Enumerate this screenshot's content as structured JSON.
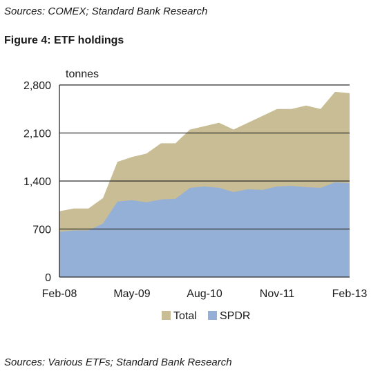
{
  "header": {
    "source_top": "Sources: COMEX; Standard Bank Research",
    "figure_title": "Figure 4: ETF holdings"
  },
  "footer": {
    "source_bottom": "Sources: Various ETFs; Standard Bank Research"
  },
  "colors": {
    "total": "#c8bd94",
    "spdr": "#94b0d6",
    "axis": "#2a2a2a",
    "grid": "#2a2a2a"
  },
  "chart_data": {
    "type": "area",
    "title": "",
    "xlabel": "",
    "ylabel": "tonnes",
    "ylim": [
      0,
      2800
    ],
    "yticks": [
      0,
      700,
      1400,
      2100,
      2800
    ],
    "ytick_labels": [
      "0",
      "700",
      "1,400",
      "2,100",
      "2,800"
    ],
    "xticks": [
      "2008-02",
      "2009-05",
      "2010-08",
      "2011-11",
      "2013-02"
    ],
    "xtick_labels": [
      "Feb-08",
      "May-09",
      "Aug-10",
      "Nov-11",
      "Feb-13"
    ],
    "grid": "horizontal",
    "legend_position": "bottom",
    "x": [
      "2008-02",
      "2008-05",
      "2008-08",
      "2008-11",
      "2009-02",
      "2009-05",
      "2009-08",
      "2009-11",
      "2010-02",
      "2010-05",
      "2010-08",
      "2010-11",
      "2011-02",
      "2011-05",
      "2011-08",
      "2011-11",
      "2012-02",
      "2012-05",
      "2012-08",
      "2012-11",
      "2013-02"
    ],
    "series": [
      {
        "name": "Total",
        "values": [
          960,
          1000,
          1000,
          1150,
          1680,
          1750,
          1800,
          1950,
          1950,
          2150,
          2200,
          2250,
          2150,
          2250,
          2350,
          2450,
          2450,
          2500,
          2450,
          2700,
          2680
        ]
      },
      {
        "name": "SPDR",
        "values": [
          660,
          680,
          680,
          780,
          1100,
          1120,
          1090,
          1130,
          1140,
          1300,
          1320,
          1300,
          1240,
          1280,
          1270,
          1320,
          1330,
          1310,
          1300,
          1380,
          1370
        ]
      }
    ]
  }
}
